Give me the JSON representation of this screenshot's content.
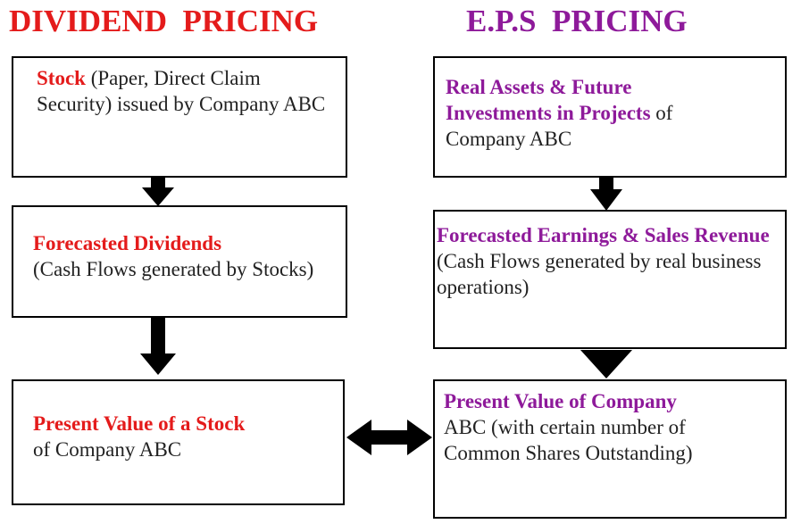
{
  "left": {
    "title": "DIVIDEND  PRICING",
    "boxes": [
      {
        "bold": "Stock",
        "text": "(Paper, Direct Claim Security) issued by Company ABC"
      },
      {
        "bold": "Forecasted Dividends",
        "text": "(Cash Flows generated by Stocks)"
      },
      {
        "bold": "Present Value of a Stock",
        "text": "of Company ABC"
      }
    ]
  },
  "right": {
    "title": "E.P.S  PRICING",
    "boxes": [
      {
        "bold": "Real Assets & Future Investments in Projects",
        "text": "of Company ABC"
      },
      {
        "bold": "Forecasted Earnings & Sales Revenue",
        "text": "(Cash Flows generated by real business operations)"
      },
      {
        "bold": "Present Value of Company",
        "text": "ABC (with certain number of Common Shares Outstanding)"
      }
    ]
  }
}
